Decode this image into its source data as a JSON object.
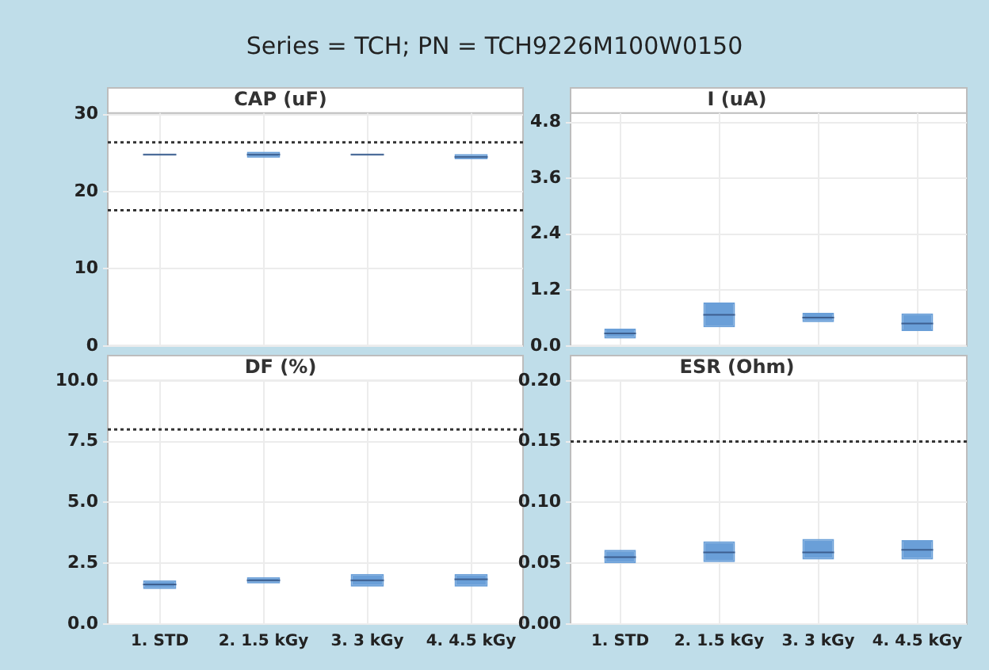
{
  "chart_data": [
    {
      "type": "other",
      "title": "Series = TCH; PN = TCH9226M100W0150"
    },
    {
      "type": "box",
      "title": "CAP (uF)",
      "categories": [
        null,
        null,
        null,
        null
      ],
      "color": "#6a9fd8",
      "ylim": [
        0,
        30.2
      ],
      "yticks": [
        0,
        10,
        20,
        30
      ],
      "grid": true,
      "tick_labels": "y",
      "line_style": "dotted",
      "boxes": [
        {
          "low": 24.7,
          "q1": 24.7,
          "median": 24.8,
          "q3": 24.9,
          "high": 24.9
        },
        {
          "low": 24.4,
          "q1": 24.4,
          "median": 24.8,
          "q3": 25.2,
          "high": 25.2
        },
        {
          "low": 24.7,
          "q1": 24.7,
          "median": 24.8,
          "q3": 24.9,
          "high": 24.9
        },
        {
          "low": 24.2,
          "q1": 24.2,
          "median": 24.5,
          "q3": 24.9,
          "high": 24.9
        }
      ],
      "ref_lines": [
        {
          "axis": "y",
          "value": 26.4,
          "color": "#333333"
        },
        {
          "axis": "y",
          "value": 17.6,
          "color": "#333333"
        }
      ]
    },
    {
      "type": "box",
      "title": "I (uA)",
      "categories": [
        null,
        null,
        null,
        null
      ],
      "color": "#6a9fd8",
      "ylim": [
        0,
        5.0
      ],
      "yticks": [
        {
          "value": 0,
          "label": "0.0"
        },
        1.2,
        2.4,
        3.6,
        4.8
      ],
      "grid": true,
      "tick_labels": "y",
      "boxes": [
        {
          "low": 0.16,
          "q1": 0.16,
          "median": 0.27,
          "q3": 0.37,
          "high": 0.37
        },
        {
          "low": 0.4,
          "q1": 0.4,
          "median": 0.67,
          "q3": 0.93,
          "high": 0.93
        },
        {
          "low": 0.51,
          "q1": 0.51,
          "median": 0.61,
          "q3": 0.71,
          "high": 0.71
        },
        {
          "low": 0.32,
          "q1": 0.32,
          "median": 0.48,
          "q3": 0.7,
          "high": 0.7
        }
      ]
    },
    {
      "type": "box",
      "title": "DF (%)",
      "categories": [
        "1. STD",
        "2. 1.5 kGy",
        "3. 3 kGy",
        "4. 4.5 kGy"
      ],
      "color": "#6a9fd8",
      "ylim": [
        0,
        10
      ],
      "yticks": [
        {
          "value": 0,
          "label": "0.0"
        },
        2.5,
        {
          "value": 5,
          "label": "5.0"
        },
        7.5,
        {
          "value": 10,
          "label": "10.0"
        }
      ],
      "grid": true,
      "line_style": "dotted",
      "boxes": [
        {
          "low": 1.44,
          "q1": 1.44,
          "median": 1.63,
          "q3": 1.8,
          "high": 1.8
        },
        {
          "low": 1.67,
          "q1": 1.67,
          "median": 1.8,
          "q3": 1.93,
          "high": 1.93
        },
        {
          "low": 1.54,
          "q1": 1.54,
          "median": 1.8,
          "q3": 2.06,
          "high": 2.06
        },
        {
          "low": 1.54,
          "q1": 1.54,
          "median": 1.84,
          "q3": 2.06,
          "high": 2.06
        }
      ],
      "ref_lines": [
        {
          "axis": "y",
          "value": 8,
          "color": "#333333"
        }
      ]
    },
    {
      "type": "box",
      "title": "ESR (Ohm)",
      "categories": [
        "1. STD",
        "2. 1.5 kGy",
        "3. 3 kGy",
        "4. 4.5 kGy"
      ],
      "color": "#6a9fd8",
      "ylim": [
        0,
        0.2
      ],
      "yticks": [
        {
          "value": 0,
          "label": "0.00"
        },
        0.05,
        {
          "value": 0.1,
          "label": "0.10"
        },
        0.15,
        {
          "value": 0.2,
          "label": "0.20"
        }
      ],
      "grid": true,
      "line_style": "dotted",
      "boxes": [
        {
          "low": 0.05,
          "q1": 0.05,
          "median": 0.055,
          "q3": 0.061,
          "high": 0.061
        },
        {
          "low": 0.051,
          "q1": 0.051,
          "median": 0.059,
          "q3": 0.068,
          "high": 0.068
        },
        {
          "low": 0.053,
          "q1": 0.053,
          "median": 0.059,
          "q3": 0.07,
          "high": 0.07
        },
        {
          "low": 0.053,
          "q1": 0.053,
          "median": 0.061,
          "q3": 0.069,
          "high": 0.069
        }
      ],
      "ref_lines": [
        {
          "axis": "y",
          "value": 0.15,
          "color": "#333333"
        }
      ]
    }
  ]
}
